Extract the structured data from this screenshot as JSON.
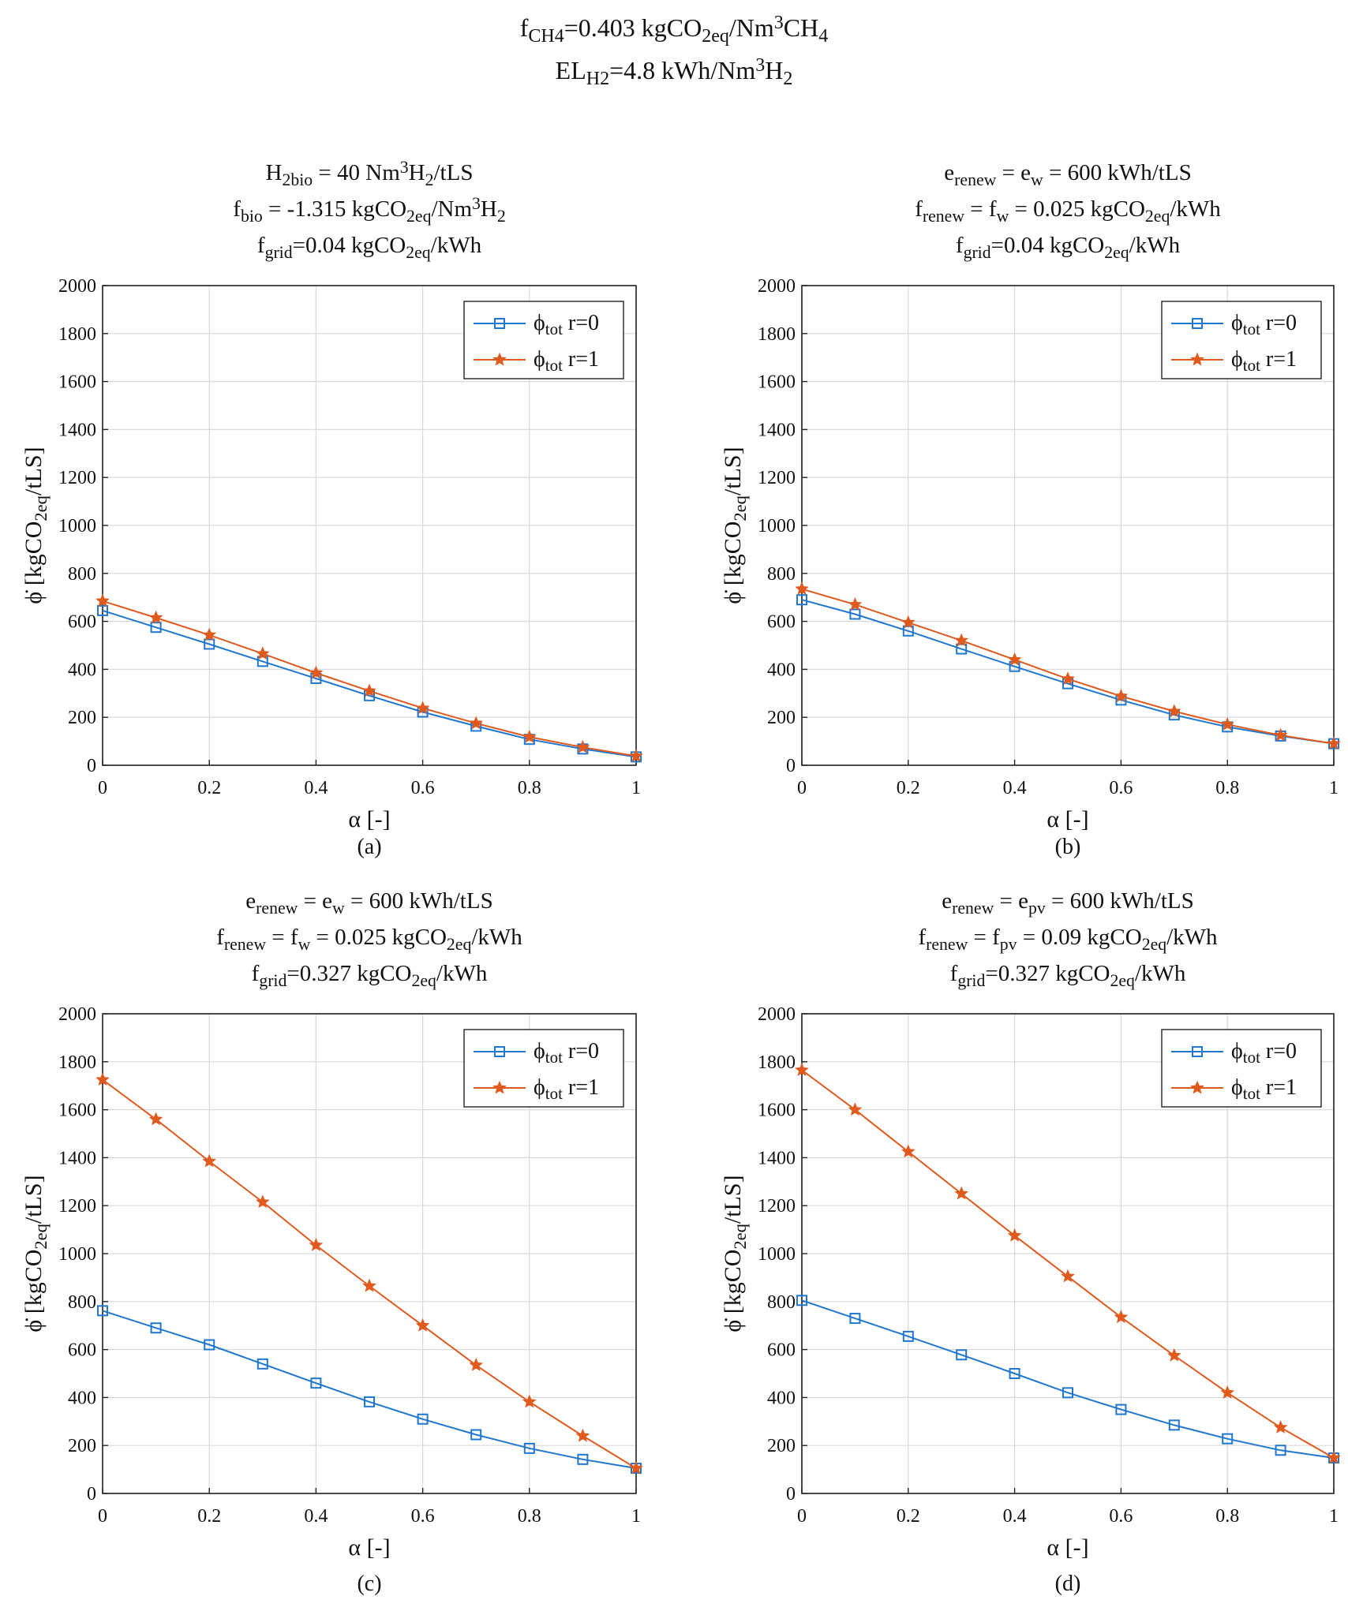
{
  "header": {
    "line1": [
      "f",
      "CH4",
      "=0.403 kgCO",
      "2eq",
      "/Nm",
      "3",
      "CH",
      "4"
    ],
    "line2": [
      "EL",
      "H2",
      "=4.8 kWh/Nm",
      "3",
      "H",
      "2"
    ]
  },
  "colors": {
    "r0": "#1f77d0",
    "r1": "#e05a1e",
    "grid": "#d9d9d9",
    "frame": "#222222"
  },
  "chart_data": [
    {
      "id": "a",
      "type": "line",
      "caption": "(a)",
      "title_lines": [
        [
          "H",
          "2bio",
          " = 40 Nm",
          "3",
          "H",
          "2",
          "/tLS"
        ],
        [
          "f",
          "bio",
          " = -1.315 kgCO",
          "2eq",
          "/Nm",
          "3",
          "H",
          "2"
        ],
        [
          "f",
          "grid",
          "=0.04 kgCO",
          "2eq",
          "/kWh"
        ]
      ],
      "xlabel": "α [-]",
      "ylabel": [
        "ϕ̇ [kgCO",
        "2eq",
        "/tLS]"
      ],
      "xlim": [
        0,
        1
      ],
      "ylim": [
        0,
        2000
      ],
      "xticks": [
        "0",
        "0.2",
        "0.4",
        "0.6",
        "0.8",
        "1"
      ],
      "yticks": [
        "0",
        "200",
        "400",
        "600",
        "800",
        "1000",
        "1200",
        "1400",
        "1600",
        "1800",
        "2000"
      ],
      "x": [
        0,
        0.1,
        0.2,
        0.3,
        0.4,
        0.5,
        0.6,
        0.7,
        0.8,
        0.9,
        1.0
      ],
      "series": [
        {
          "name": [
            "ϕ",
            "tot",
            " r=0"
          ],
          "marker": "square",
          "color": "#1f77d0",
          "values": [
            645,
            575,
            505,
            433,
            362,
            290,
            222,
            163,
            108,
            68,
            35
          ]
        },
        {
          "name": [
            "ϕ",
            "tot",
            " r=1"
          ],
          "marker": "star",
          "color": "#e05a1e",
          "values": [
            685,
            615,
            543,
            465,
            385,
            310,
            238,
            175,
            118,
            75,
            38
          ]
        }
      ]
    },
    {
      "id": "b",
      "type": "line",
      "caption": "(b)",
      "title_lines": [
        [
          "e",
          "renew",
          " = e",
          "w",
          " = 600 kWh/tLS"
        ],
        [
          "f",
          "renew",
          " = f",
          "w",
          " = 0.025 kgCO",
          "2eq",
          "/kWh"
        ],
        [
          "f",
          "grid",
          "=0.04 kgCO",
          "2eq",
          "/kWh"
        ]
      ],
      "xlabel": "α [-]",
      "ylabel": [
        "ϕ̇ [kgCO",
        "2eq",
        "/tLS]"
      ],
      "xlim": [
        0,
        1
      ],
      "ylim": [
        0,
        2000
      ],
      "xticks": [
        "0",
        "0.2",
        "0.4",
        "0.6",
        "0.8",
        "1"
      ],
      "yticks": [
        "0",
        "200",
        "400",
        "600",
        "800",
        "1000",
        "1200",
        "1400",
        "1600",
        "1800",
        "2000"
      ],
      "x": [
        0,
        0.1,
        0.2,
        0.3,
        0.4,
        0.5,
        0.6,
        0.7,
        0.8,
        0.9,
        1.0
      ],
      "series": [
        {
          "name": [
            "ϕ",
            "tot",
            " r=0"
          ],
          "marker": "square",
          "color": "#1f77d0",
          "values": [
            690,
            630,
            560,
            485,
            412,
            340,
            272,
            210,
            160,
            122,
            90
          ]
        },
        {
          "name": [
            "ϕ",
            "tot",
            " r=1"
          ],
          "marker": "star",
          "color": "#e05a1e",
          "values": [
            735,
            670,
            595,
            520,
            440,
            360,
            288,
            225,
            170,
            125,
            90
          ]
        }
      ]
    },
    {
      "id": "c",
      "type": "line",
      "caption": "(c)",
      "title_lines": [
        [
          "e",
          "renew",
          " = e",
          "w",
          " = 600 kWh/tLS"
        ],
        [
          "f",
          "renew",
          " = f",
          "w",
          " = 0.025 kgCO",
          "2eq",
          "/kWh"
        ],
        [
          "f",
          "grid",
          "=0.327 kgCO",
          "2eq",
          "/kWh"
        ]
      ],
      "xlabel": "α [-]",
      "ylabel": [
        "ϕ̇ [kgCO",
        "2eq",
        "/tLS]"
      ],
      "xlim": [
        0,
        1
      ],
      "ylim": [
        0,
        2000
      ],
      "xticks": [
        "0",
        "0.2",
        "0.4",
        "0.6",
        "0.8",
        "1"
      ],
      "yticks": [
        "0",
        "200",
        "400",
        "600",
        "800",
        "1000",
        "1200",
        "1400",
        "1600",
        "1800",
        "2000"
      ],
      "x": [
        0,
        0.1,
        0.2,
        0.3,
        0.4,
        0.5,
        0.6,
        0.7,
        0.8,
        0.9,
        1.0
      ],
      "series": [
        {
          "name": [
            "ϕ",
            "tot",
            " r=0"
          ],
          "marker": "square",
          "color": "#1f77d0",
          "values": [
            762,
            690,
            620,
            540,
            460,
            382,
            310,
            245,
            188,
            142,
            105
          ]
        },
        {
          "name": [
            "ϕ",
            "tot",
            " r=1"
          ],
          "marker": "star",
          "color": "#e05a1e",
          "values": [
            1725,
            1560,
            1385,
            1215,
            1035,
            865,
            700,
            535,
            382,
            240,
            105
          ]
        }
      ]
    },
    {
      "id": "d",
      "type": "line",
      "caption": "(d)",
      "title_lines": [
        [
          "e",
          "renew",
          " = e",
          "pv",
          " = 600 kWh/tLS"
        ],
        [
          "f",
          "renew",
          " = f",
          "pv",
          " = 0.09 kgCO",
          "2eq",
          "/kWh"
        ],
        [
          "f",
          "grid",
          "=0.327 kgCO",
          "2eq",
          "/kWh"
        ]
      ],
      "xlabel": "α [-]",
      "ylabel": [
        "ϕ̇ [kgCO",
        "2eq",
        "/tLS]"
      ],
      "xlim": [
        0,
        1
      ],
      "ylim": [
        0,
        2000
      ],
      "xticks": [
        "0",
        "0.2",
        "0.4",
        "0.6",
        "0.8",
        "1"
      ],
      "yticks": [
        "0",
        "200",
        "400",
        "600",
        "800",
        "1000",
        "1200",
        "1400",
        "1600",
        "1800",
        "2000"
      ],
      "x": [
        0,
        0.1,
        0.2,
        0.3,
        0.4,
        0.5,
        0.6,
        0.7,
        0.8,
        0.9,
        1.0
      ],
      "series": [
        {
          "name": [
            "ϕ",
            "tot",
            " r=0"
          ],
          "marker": "square",
          "color": "#1f77d0",
          "values": [
            805,
            730,
            655,
            578,
            500,
            420,
            350,
            285,
            228,
            180,
            148
          ]
        },
        {
          "name": [
            "ϕ",
            "tot",
            " r=1"
          ],
          "marker": "star",
          "color": "#e05a1e",
          "values": [
            1765,
            1600,
            1425,
            1250,
            1075,
            905,
            735,
            575,
            420,
            275,
            148
          ]
        }
      ]
    }
  ]
}
